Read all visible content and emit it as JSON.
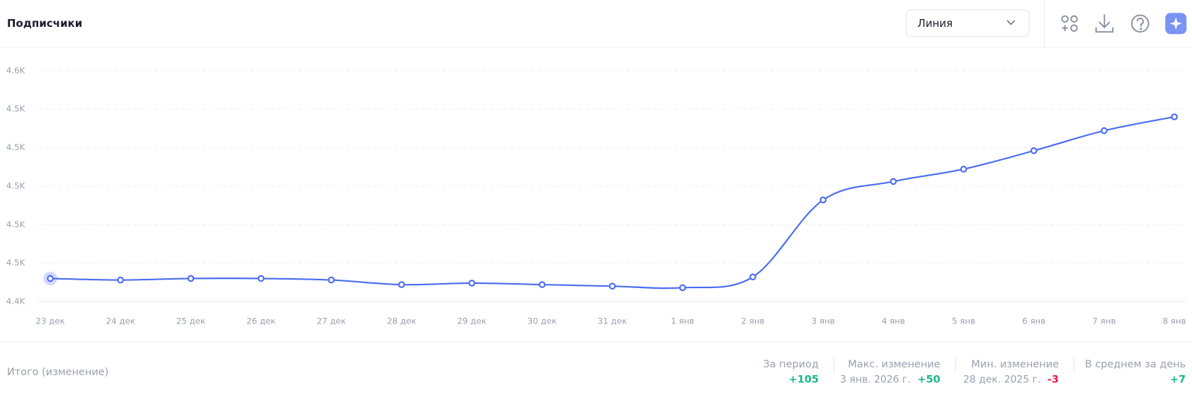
{
  "header": {
    "title": "Подписчики",
    "view_select": "Линия"
  },
  "chart_data": {
    "type": "line",
    "categories": [
      "23 дек",
      "24 дек",
      "25 дек",
      "26 дек",
      "27 дек",
      "28 дек",
      "29 дек",
      "30 дек",
      "31 дек",
      "1 янв",
      "2 янв",
      "3 янв",
      "4 янв",
      "5 янв",
      "6 янв",
      "7 янв",
      "8 янв"
    ],
    "series": [
      {
        "name": "Подписчики",
        "color": "#4a6cf0",
        "values": [
          4440,
          4439,
          4440,
          4440,
          4439,
          4436,
          4437,
          4436,
          4435,
          4434,
          4441,
          4491,
          4503,
          4511,
          4523,
          4536,
          4545
        ]
      }
    ],
    "ylim": [
      4425,
      4575
    ],
    "yticks": [
      {
        "value": 4425,
        "label": "4.4K"
      },
      {
        "value": 4450,
        "label": "4.5K"
      },
      {
        "value": 4475,
        "label": "4.5K"
      },
      {
        "value": 4500,
        "label": "4.5K"
      },
      {
        "value": 4525,
        "label": "4.5K"
      },
      {
        "value": 4550,
        "label": "4.5K"
      },
      {
        "value": 4575,
        "label": "4.6K"
      }
    ],
    "grid": true
  },
  "summary": {
    "title": "Итого (изменение)",
    "items": [
      {
        "label": "За период",
        "value": "+105",
        "tone": "up"
      },
      {
        "label": "Макс. изменение",
        "date": "3 янв. 2026 г.",
        "value": "+50",
        "tone": "up"
      },
      {
        "label": "Мин. изменение",
        "date": "28 дек. 2025 г.",
        "value": "-3",
        "tone": "down"
      },
      {
        "label": "В среднем за день",
        "value": "+7",
        "tone": "up"
      }
    ]
  }
}
